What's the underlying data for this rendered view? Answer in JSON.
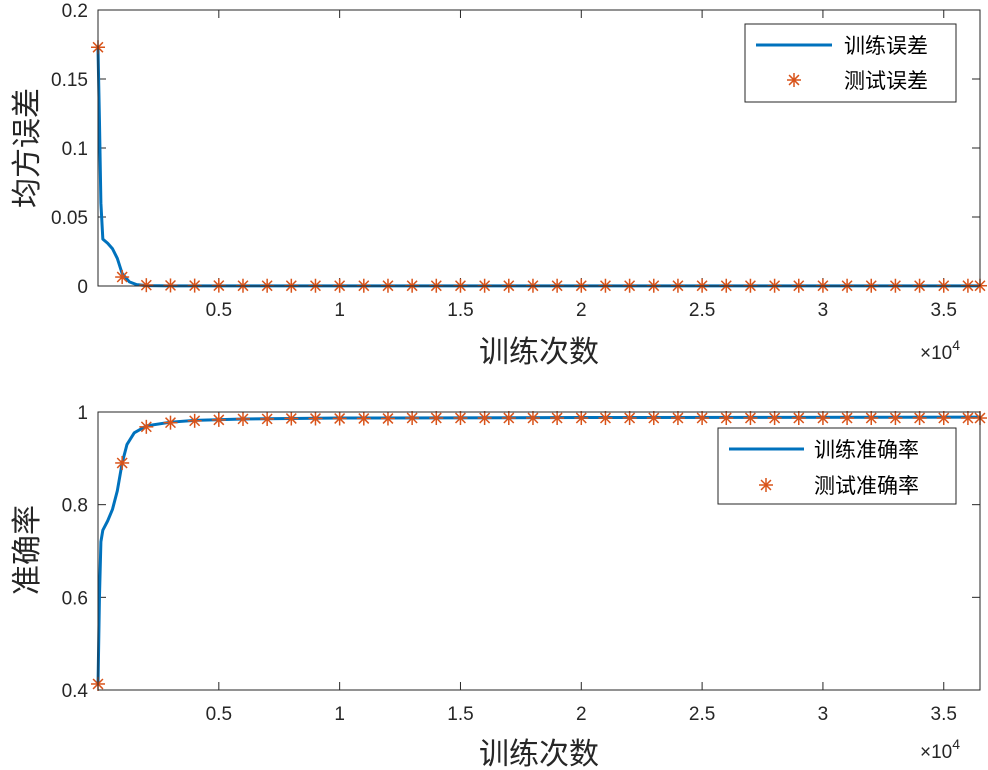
{
  "colors": {
    "train": "#0072BD",
    "test": "#D95319",
    "axis": "#262626"
  },
  "chart_data": [
    {
      "type": "line",
      "xlabel": "训练次数",
      "ylabel": "均方误差",
      "x_multiplier": "×10",
      "x_multiplier_exp": "4",
      "xlim": [
        0,
        36500
      ],
      "ylim": [
        0,
        0.2
      ],
      "xticks": [
        5000,
        10000,
        15000,
        20000,
        25000,
        30000,
        35000
      ],
      "xtick_labels": [
        "0.5",
        "1",
        "1.5",
        "2",
        "2.5",
        "3",
        "3.5"
      ],
      "yticks": [
        0,
        0.05,
        0.1,
        0.15,
        0.2
      ],
      "ytick_labels": [
        "0",
        "0.05",
        "0.1",
        "0.15",
        "0.2"
      ],
      "grid": false,
      "legend_position": "top-right",
      "series": [
        {
          "name": "训练误差",
          "style": "line",
          "x": [
            0,
            60,
            120,
            200,
            400,
            600,
            800,
            1000,
            1300,
            1600,
            2000,
            3000,
            36500
          ],
          "y": [
            0.172,
            0.12,
            0.06,
            0.034,
            0.031,
            0.027,
            0.02,
            0.009,
            0.003,
            0.001,
            0.0003,
            0.0001,
            0.0001
          ]
        },
        {
          "name": "测试误差",
          "style": "marker",
          "marker": "*",
          "x": [
            0,
            1000,
            2000,
            3000,
            4000,
            5000,
            6000,
            7000,
            8000,
            9000,
            10000,
            11000,
            12000,
            13000,
            14000,
            15000,
            16000,
            17000,
            18000,
            19000,
            20000,
            21000,
            22000,
            23000,
            24000,
            25000,
            26000,
            27000,
            28000,
            29000,
            30000,
            31000,
            32000,
            33000,
            34000,
            35000,
            36000,
            36500
          ],
          "y": [
            0.173,
            0.0065,
            0.0006,
            0.0004,
            0.0003,
            0.0003,
            0.0002,
            0.0002,
            0.0002,
            0.0002,
            0.0002,
            0.0002,
            0.0002,
            0.0002,
            0.0002,
            0.0002,
            0.0002,
            0.0002,
            0.0002,
            0.0002,
            0.0002,
            0.0002,
            0.0002,
            0.0002,
            0.0002,
            0.0002,
            0.0002,
            0.0002,
            0.0002,
            0.0002,
            0.0002,
            0.0002,
            0.0002,
            0.0002,
            0.0002,
            0.0002,
            0.0002,
            0.0002
          ]
        }
      ]
    },
    {
      "type": "line",
      "xlabel": "训练次数",
      "ylabel": "准确率",
      "x_multiplier": "×10",
      "x_multiplier_exp": "4",
      "xlim": [
        0,
        36500
      ],
      "ylim": [
        0.4,
        1
      ],
      "xticks": [
        5000,
        10000,
        15000,
        20000,
        25000,
        30000,
        35000
      ],
      "xtick_labels": [
        "0.5",
        "1",
        "1.5",
        "2",
        "2.5",
        "3",
        "3.5"
      ],
      "yticks": [
        0.4,
        0.6,
        0.8,
        1
      ],
      "ytick_labels": [
        "0.4",
        "0.6",
        "0.8",
        "1"
      ],
      "grid": false,
      "legend_position": "top-right",
      "series": [
        {
          "name": "训练准确率",
          "style": "line",
          "x": [
            0,
            60,
            120,
            200,
            400,
            600,
            800,
            1000,
            1200,
            1500,
            2000,
            3000,
            4000,
            6000,
            10000,
            20000,
            36500
          ],
          "y": [
            0.41,
            0.6,
            0.72,
            0.745,
            0.765,
            0.79,
            0.83,
            0.89,
            0.93,
            0.955,
            0.97,
            0.978,
            0.982,
            0.985,
            0.987,
            0.988,
            0.989
          ]
        },
        {
          "name": "测试准确率",
          "style": "marker",
          "marker": "*",
          "x": [
            0,
            1000,
            2000,
            3000,
            4000,
            5000,
            6000,
            7000,
            8000,
            9000,
            10000,
            11000,
            12000,
            13000,
            14000,
            15000,
            16000,
            17000,
            18000,
            19000,
            20000,
            21000,
            22000,
            23000,
            24000,
            25000,
            26000,
            27000,
            28000,
            29000,
            30000,
            31000,
            32000,
            33000,
            34000,
            35000,
            36000,
            36500
          ],
          "y": [
            0.413,
            0.89,
            0.968,
            0.977,
            0.981,
            0.983,
            0.985,
            0.985,
            0.986,
            0.986,
            0.986,
            0.986,
            0.986,
            0.987,
            0.987,
            0.987,
            0.987,
            0.987,
            0.987,
            0.987,
            0.987,
            0.987,
            0.987,
            0.987,
            0.987,
            0.987,
            0.987,
            0.987,
            0.987,
            0.987,
            0.987,
            0.987,
            0.987,
            0.987,
            0.987,
            0.987,
            0.987,
            0.987
          ]
        }
      ]
    }
  ]
}
